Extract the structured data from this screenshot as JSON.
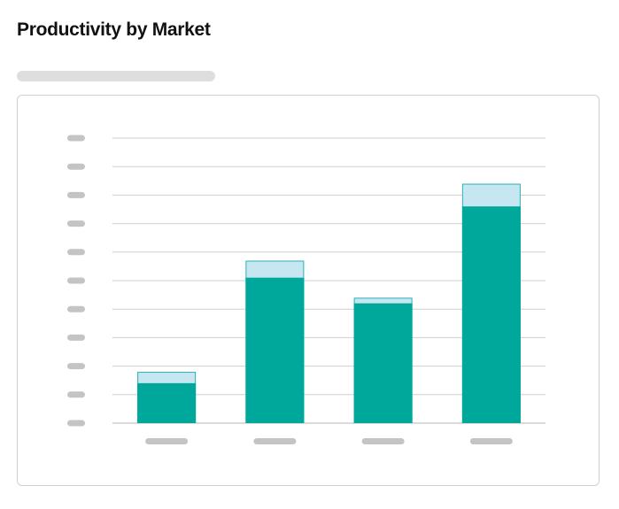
{
  "page": {
    "title": "Productivity by Market"
  },
  "chart_data": {
    "type": "bar",
    "stacked": true,
    "grid": true,
    "legend": "none",
    "title": "Productivity by Market",
    "categories": [
      "",
      "",
      "",
      ""
    ],
    "ylim": [
      0,
      100
    ],
    "series": [
      {
        "values": [
          14,
          51,
          42,
          76
        ]
      },
      {
        "values": [
          4,
          6,
          2,
          8
        ]
      }
    ],
    "colors": {
      "base": "#00a89c",
      "top": "#c6e6f1",
      "top_border": "#2bb1b5",
      "grid": "#cfcfcf",
      "axis": "#b5b5b5",
      "tick_placeholder": "#c4c4c4"
    }
  }
}
